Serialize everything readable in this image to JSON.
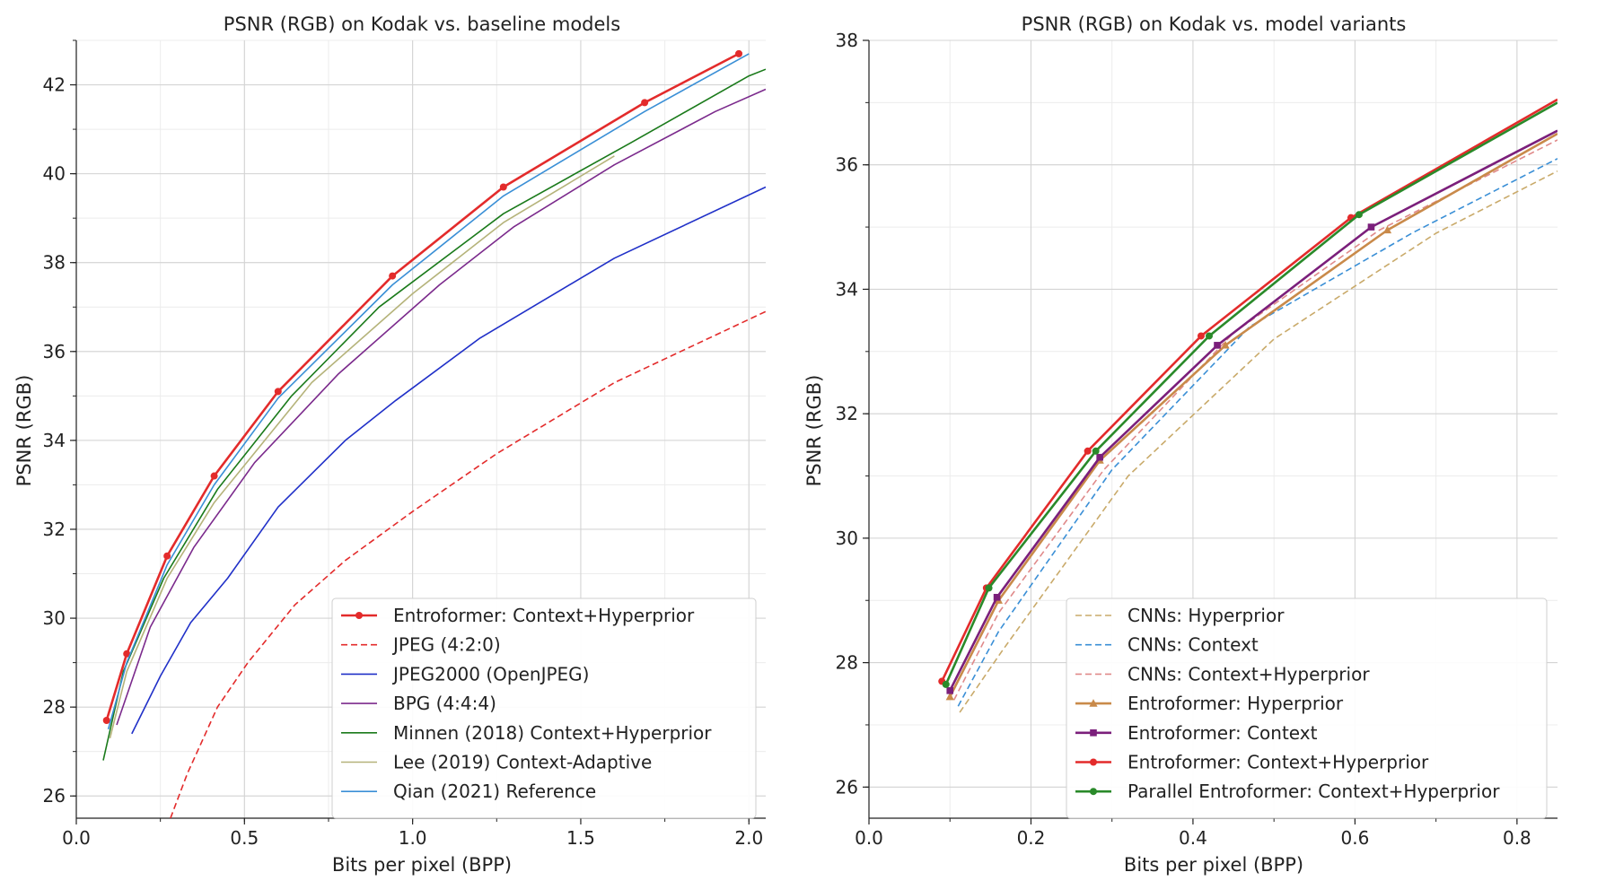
{
  "chart_data": [
    {
      "type": "line",
      "title": "PSNR (RGB) on Kodak vs. baseline models",
      "xlabel": "Bits per pixel (BPP)",
      "ylabel": "PSNR (RGB)",
      "xlim": [
        0.0,
        2.05
      ],
      "ylim": [
        25.5,
        43.0
      ],
      "xticks": [
        0.0,
        0.5,
        1.0,
        1.5,
        2.0
      ],
      "xtick_labels": [
        "0.0",
        "0.5",
        "1.0",
        "1.5",
        "2.0"
      ],
      "yticks": [
        26,
        28,
        30,
        32,
        34,
        36,
        38,
        40,
        42
      ],
      "ytick_labels": [
        "26",
        "28",
        "30",
        "32",
        "34",
        "36",
        "38",
        "40",
        "42"
      ],
      "grid": true,
      "legend_position": "lower-right",
      "series": [
        {
          "name": "Entroformer: Context+Hyperprior",
          "color": "#e32b2b",
          "dash": "solid",
          "marker": "circle",
          "width": 2.6,
          "x": [
            0.09,
            0.15,
            0.27,
            0.41,
            0.6,
            0.94,
            1.27,
            1.69,
            1.97
          ],
          "y": [
            27.7,
            29.2,
            31.4,
            33.2,
            35.1,
            37.7,
            39.7,
            41.6,
            42.7
          ]
        },
        {
          "name": "JPEG (4:2:0)",
          "color": "#e32b2b",
          "dash": "dashed",
          "marker": "none",
          "width": 1.6,
          "x": [
            0.28,
            0.33,
            0.42,
            0.51,
            0.65,
            0.8,
            1.0,
            1.25,
            1.6,
            2.05
          ],
          "y": [
            25.5,
            26.5,
            28.0,
            29.0,
            30.3,
            31.3,
            32.4,
            33.7,
            35.3,
            36.9
          ]
        },
        {
          "name": "JPEG2000 (OpenJPEG)",
          "color": "#2030c8",
          "dash": "solid",
          "marker": "none",
          "width": 1.6,
          "x": [
            0.165,
            0.25,
            0.34,
            0.45,
            0.6,
            0.8,
            0.95,
            1.2,
            1.6,
            2.05
          ],
          "y": [
            27.4,
            28.7,
            29.9,
            30.9,
            32.5,
            34.0,
            34.9,
            36.3,
            38.1,
            39.7
          ]
        },
        {
          "name": "BPG (4:4:4)",
          "color": "#7b2a8c",
          "dash": "solid",
          "marker": "none",
          "width": 1.6,
          "x": [
            0.12,
            0.22,
            0.35,
            0.53,
            0.78,
            1.08,
            1.3,
            1.6,
            1.9,
            2.05
          ],
          "y": [
            27.6,
            29.8,
            31.6,
            33.5,
            35.5,
            37.5,
            38.8,
            40.2,
            41.4,
            41.9
          ]
        },
        {
          "name": "Minnen (2018) Context+Hyperprior",
          "color": "#1a7a1a",
          "dash": "solid",
          "marker": "none",
          "width": 1.6,
          "x": [
            0.08,
            0.14,
            0.26,
            0.42,
            0.64,
            0.9,
            1.27,
            1.65,
            2.0,
            2.05
          ],
          "y": [
            26.8,
            28.8,
            30.9,
            32.9,
            35.0,
            37.0,
            39.1,
            40.7,
            42.2,
            42.35
          ]
        },
        {
          "name": "Lee (2019) Context-Adaptive",
          "color": "#b5b37a",
          "dash": "solid",
          "marker": "none",
          "width": 1.6,
          "x": [
            0.1,
            0.15,
            0.27,
            0.41,
            0.7,
            1.0,
            1.27,
            1.6
          ],
          "y": [
            27.3,
            28.8,
            30.9,
            32.6,
            35.3,
            37.3,
            38.9,
            40.4
          ]
        },
        {
          "name": "Qian (2021) Reference",
          "color": "#3a8fd6",
          "dash": "solid",
          "marker": "none",
          "width": 1.6,
          "x": [
            0.095,
            0.15,
            0.27,
            0.41,
            0.6,
            0.94,
            1.27,
            1.69,
            2.0
          ],
          "y": [
            27.5,
            29.0,
            31.2,
            33.0,
            34.95,
            37.5,
            39.5,
            41.4,
            42.7
          ]
        }
      ]
    },
    {
      "type": "line",
      "title": "PSNR (RGB) on Kodak vs. model variants",
      "xlabel": "Bits per pixel (BPP)",
      "ylabel": "PSNR (RGB)",
      "xlim": [
        0.0,
        0.85
      ],
      "ylim": [
        25.5,
        38.0
      ],
      "xticks": [
        0.0,
        0.2,
        0.4,
        0.6,
        0.8
      ],
      "xtick_labels": [
        "0.0",
        "0.2",
        "0.4",
        "0.6",
        "0.8"
      ],
      "yticks": [
        26,
        28,
        30,
        32,
        34,
        36,
        38
      ],
      "ytick_labels": [
        "26",
        "28",
        "30",
        "32",
        "34",
        "36",
        "38"
      ],
      "grid": true,
      "legend_position": "lower-right",
      "series": [
        {
          "name": "CNNs: Hyperprior",
          "color": "#c9aa6a",
          "dash": "dashed",
          "marker": "none",
          "width": 1.6,
          "x": [
            0.112,
            0.165,
            0.32,
            0.5,
            0.7,
            0.85
          ],
          "y": [
            27.2,
            28.2,
            31.0,
            33.2,
            34.9,
            35.9
          ]
        },
        {
          "name": "CNNs: Context",
          "color": "#3a8fd6",
          "dash": "dashed",
          "marker": "none",
          "width": 1.6,
          "x": [
            0.11,
            0.16,
            0.3,
            0.47,
            0.67,
            0.85
          ],
          "y": [
            27.3,
            28.5,
            31.1,
            33.4,
            34.9,
            36.1
          ]
        },
        {
          "name": "CNNs: Context+Hyperprior",
          "color": "#e08a8a",
          "dash": "dashed",
          "marker": "none",
          "width": 1.6,
          "x": [
            0.105,
            0.16,
            0.29,
            0.45,
            0.63,
            0.85
          ],
          "y": [
            27.4,
            28.8,
            31.1,
            33.3,
            34.95,
            36.4
          ]
        },
        {
          "name": "Entroformer: Hyperprior",
          "color": "#c98a4a",
          "dash": "solid",
          "marker": "triangle",
          "width": 2.6,
          "x": [
            0.1,
            0.16,
            0.285,
            0.44,
            0.64,
            0.85
          ],
          "y": [
            27.45,
            29.0,
            31.25,
            33.1,
            34.95,
            36.5
          ]
        },
        {
          "name": "Entroformer: Context",
          "color": "#7b1f7b",
          "dash": "solid",
          "marker": "square",
          "width": 2.6,
          "x": [
            0.1,
            0.158,
            0.285,
            0.43,
            0.62,
            0.85
          ],
          "y": [
            27.55,
            29.05,
            31.3,
            33.1,
            35.0,
            36.55
          ]
        },
        {
          "name": "Entroformer: Context+Hyperprior",
          "color": "#e32b2b",
          "dash": "solid",
          "marker": "circle",
          "width": 2.6,
          "x": [
            0.09,
            0.145,
            0.27,
            0.41,
            0.595,
            0.85
          ],
          "y": [
            27.7,
            29.2,
            31.4,
            33.25,
            35.15,
            37.05
          ]
        },
        {
          "name": "Parallel Entroformer: Context+Hyperprior",
          "color": "#2a8a2a",
          "dash": "solid",
          "marker": "circle",
          "width": 2.6,
          "x": [
            0.095,
            0.148,
            0.28,
            0.42,
            0.605,
            0.85
          ],
          "y": [
            27.65,
            29.2,
            31.4,
            33.25,
            35.2,
            37.0
          ]
        }
      ]
    }
  ]
}
